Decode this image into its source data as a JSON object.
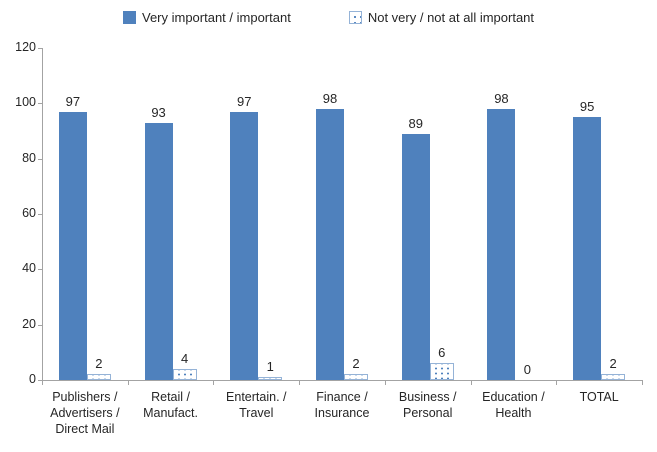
{
  "chart_data": {
    "type": "bar",
    "title": "",
    "categories": [
      "Publishers / Advertisers / Direct Mail",
      "Retail / Manufact.",
      "Entertain. / Travel",
      "Finance / Insurance",
      "Business / Personal",
      "Education / Health",
      "TOTAL"
    ],
    "category_label_lines": [
      [
        "Publishers /",
        "Advertisers /",
        "Direct Mail"
      ],
      [
        "Retail /",
        "Manufact."
      ],
      [
        "Entertain. /",
        "Travel"
      ],
      [
        "Finance /",
        "Insurance"
      ],
      [
        "Business /",
        "Personal"
      ],
      [
        "Education /",
        "Health"
      ],
      [
        "TOTAL"
      ]
    ],
    "series": [
      {
        "name": "Very important / important",
        "values": [
          97,
          93,
          97,
          98,
          89,
          98,
          95
        ],
        "style": "solid",
        "color": "#4F81BD"
      },
      {
        "name": "Not very / not at all important",
        "values": [
          2,
          4,
          1,
          2,
          6,
          0,
          2
        ],
        "style": "dotted",
        "fill": "#FFFFFF",
        "dot_color": "#4F81BD",
        "border_color": "#95B3D7"
      }
    ],
    "xlabel": "",
    "ylabel": "",
    "ylim": [
      0,
      120
    ],
    "yticks": [
      0,
      20,
      40,
      60,
      80,
      100,
      120
    ],
    "grid": false,
    "data_labels": true,
    "legend_position": "top",
    "axis_color": "#A3A3A3",
    "text_color": "#262626"
  }
}
